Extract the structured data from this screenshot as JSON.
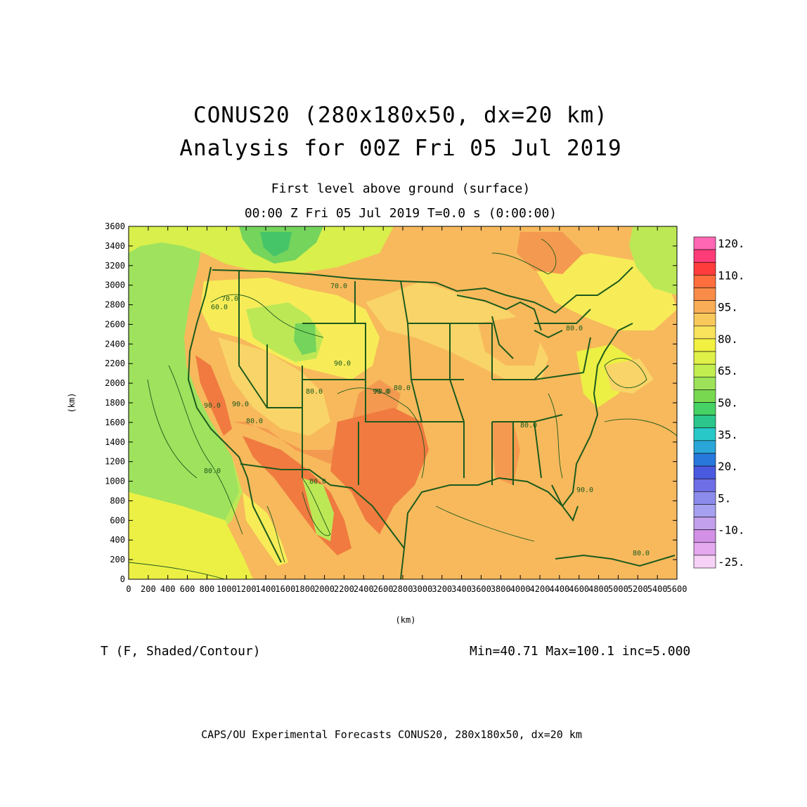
{
  "header": {
    "title": "CONUS20 (280x180x50, dx=20 km)",
    "subtitle": "Analysis for 00Z Fri 05 Jul 2019",
    "level": "First level above ground (surface)",
    "time": "00:00 Z Fri 05 Jul 2019    T=0.0 s (0:00:00)"
  },
  "axes": {
    "x_label": "(km)",
    "y_label": "(km)",
    "x_ticks": [
      "0",
      "200",
      "400",
      "600",
      "800",
      "1000",
      "1200",
      "1400",
      "1600",
      "1800",
      "2000",
      "2200",
      "2400",
      "2600",
      "2800",
      "3000",
      "3200",
      "3400",
      "3600",
      "3800",
      "4000",
      "4200",
      "4400",
      "4600",
      "4800",
      "5000",
      "5200",
      "5400",
      "5600"
    ],
    "y_ticks": [
      "0",
      "200",
      "400",
      "600",
      "800",
      "1000",
      "1200",
      "1400",
      "1600",
      "1800",
      "2000",
      "2200",
      "2400",
      "2600",
      "2800",
      "3000",
      "3200",
      "3400",
      "3600"
    ],
    "xlim": [
      0,
      5600
    ],
    "ylim": [
      0,
      3600
    ]
  },
  "colorbar": {
    "labels": [
      "120.",
      "110.",
      "95.",
      "80.",
      "65.",
      "50.",
      "35.",
      "20.",
      "5.",
      "-10.",
      "-25."
    ],
    "colors": [
      "#ff66b4",
      "#ff3c78",
      "#ff3c3c",
      "#ff6e3c",
      "#f88c48",
      "#f9ad56",
      "#f8c85a",
      "#f9e25c",
      "#f2f040",
      "#dff048",
      "#c3ee50",
      "#9ee25a",
      "#78d850",
      "#46d264",
      "#2ac68c",
      "#28c8c8",
      "#2aa6d8",
      "#2878dc",
      "#4a5ae0",
      "#6e6ee6",
      "#8c8cec",
      "#a6a0f0",
      "#c3a0ee",
      "#d290e6",
      "#e4a8ee",
      "#f6d2f6"
    ]
  },
  "contour_labels": [
    "70.0",
    "60.0",
    "70.0",
    "80.0",
    "90.0",
    "80.0",
    "90.0",
    "90.0",
    "80.0",
    "90.0",
    "70.0",
    "80.0",
    "80.0",
    "90.0",
    "80.0",
    "80.0",
    "80.0"
  ],
  "map_colors": {
    "t95": "#f07a40",
    "t90": "#f49a50",
    "t85": "#f7b95c",
    "t80": "#f9d468",
    "t75": "#f7ec58",
    "t70": "#ecf044",
    "t65": "#d9ef4c",
    "t60": "#bde856",
    "t55": "#9ee25e",
    "t50": "#74d45c",
    "t45": "#46c468",
    "border": "#1d5a1d"
  },
  "variable": "T (F, Shaded/Contour)",
  "stats": "Min=40.71 Max=100.1 inc=5.000",
  "footer": "CAPS/OU Experimental Forecasts  CONUS20, 280x180x50, dx=20 km"
}
